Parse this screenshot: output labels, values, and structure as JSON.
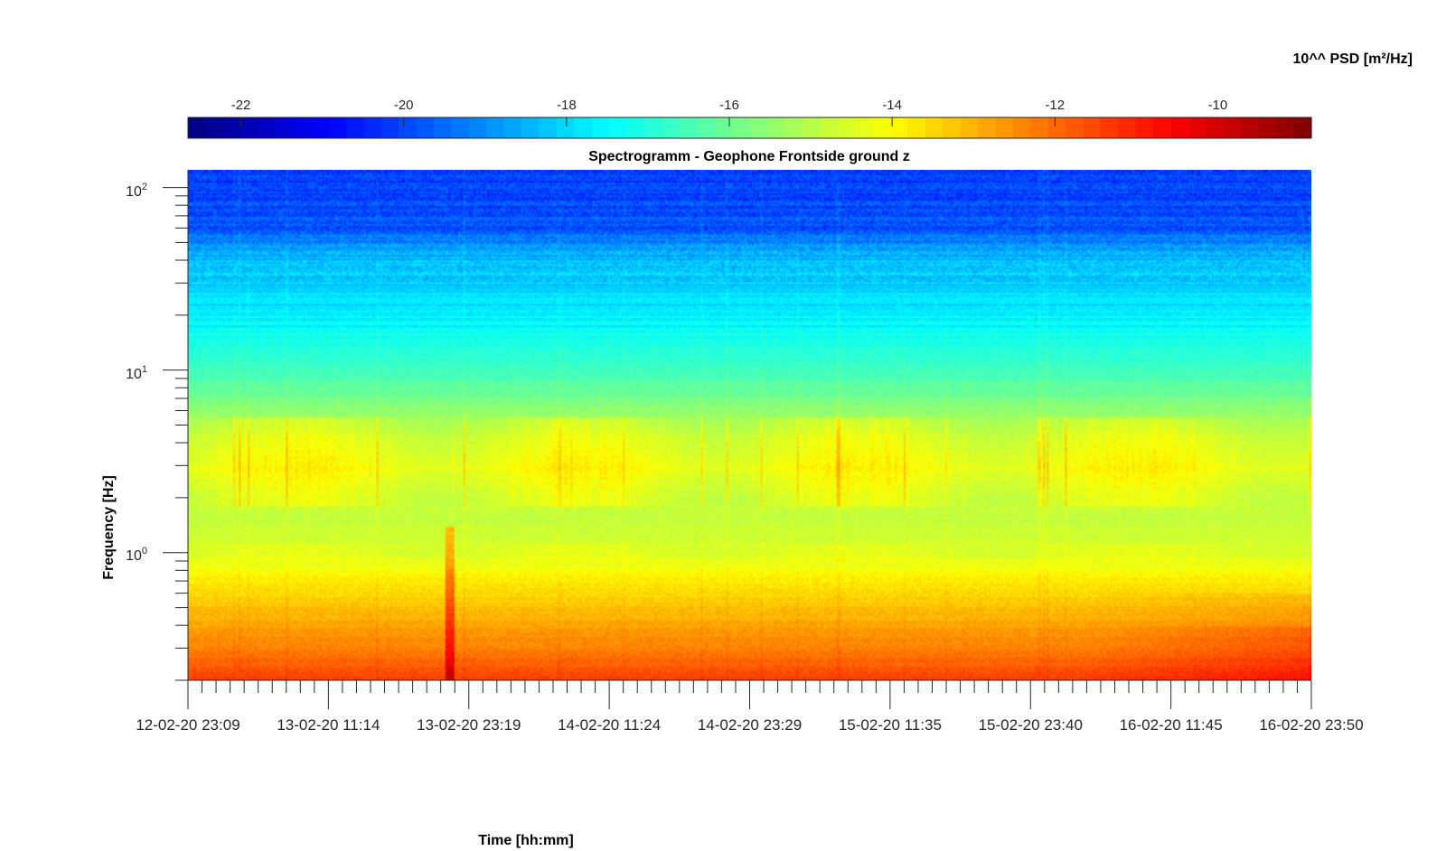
{
  "chart_data": {
    "type": "heatmap",
    "title": "Spectrogramm - Geophone Frontside ground z",
    "xlabel": "Time [hh:mm]",
    "ylabel": "Frequency [Hz]",
    "colorbar_label": "10^^ PSD [m²/Hz]",
    "colormap": "jet",
    "y_scale": "log",
    "ylim": [
      0.2,
      125
    ],
    "clim": [
      -22.65,
      -8.85
    ],
    "colorbar_ticks": [
      -22,
      -20,
      -18,
      -16,
      -14,
      -12,
      -10
    ],
    "colorbar_location": "top",
    "x_start": "12-02-20 23:09",
    "x_end": "16-02-20 23:50",
    "x_tick_labels": [
      "12-02-20 23:09",
      "13-02-20 11:14",
      "13-02-20 23:19",
      "14-02-20 11:24",
      "14-02-20 23:29",
      "15-02-20 11:35",
      "15-02-20 23:40",
      "16-02-20 11:45",
      "16-02-20 23:50"
    ],
    "y_ticks": [
      {
        "base": "10",
        "exp": "0",
        "value": 1
      },
      {
        "base": "10",
        "exp": "1",
        "value": 10
      },
      {
        "base": "10",
        "exp": "2",
        "value": 100
      }
    ],
    "psd_profile_by_frequency": {
      "frequency_hz": [
        0.2,
        0.3,
        0.5,
        0.7,
        1.0,
        2.0,
        3.0,
        5.0,
        8.0,
        10.0,
        20.0,
        40.0,
        60.0,
        125.0
      ],
      "log10_psd": [
        -11.4,
        -12.3,
        -13.2,
        -13.8,
        -14.6,
        -14.9,
        -14.4,
        -15.1,
        -16.2,
        -16.6,
        -17.7,
        -18.3,
        -19.8,
        -20.2
      ]
    },
    "grid": false
  }
}
